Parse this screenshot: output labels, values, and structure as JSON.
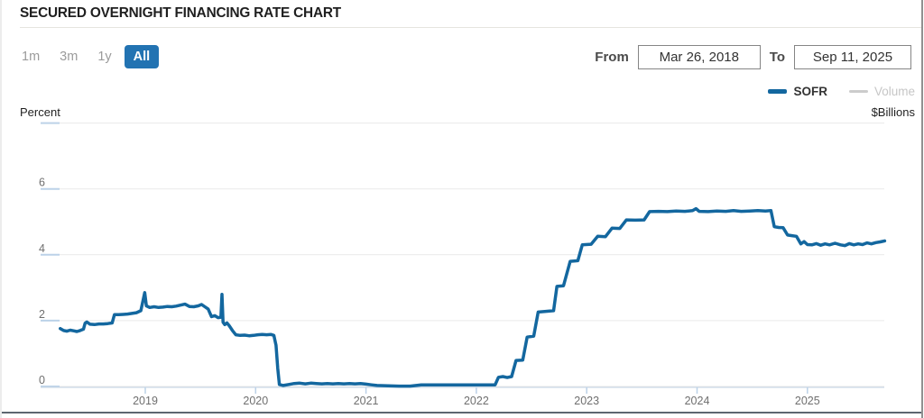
{
  "header": {
    "title": "SECURED OVERNIGHT FINANCING RATE CHART"
  },
  "controls": {
    "ranges": [
      {
        "label": "1m",
        "active": false
      },
      {
        "label": "3m",
        "active": false
      },
      {
        "label": "1y",
        "active": false
      },
      {
        "label": "All",
        "active": true
      }
    ],
    "from_label": "From",
    "from_value": "Mar 26, 2018",
    "to_label": "To",
    "to_value": "Sep 11, 2025"
  },
  "legend": {
    "sofr": {
      "label": "SOFR",
      "color": "#13679f",
      "enabled": true
    },
    "volume": {
      "label": "Volume",
      "color": "#cccccc",
      "enabled": false
    }
  },
  "axes": {
    "left_unit": "Percent",
    "right_unit": "$Billions"
  },
  "colors": {
    "accent_blue": "#2273b2",
    "line_blue": "#13679f",
    "grid": "#e9e9e9",
    "tick_blue": "#bcd2e8",
    "axis_baseline": "#ccd9e8",
    "axis_text": "#6f6f6f",
    "muted_text": "#9b9b9b",
    "legend_disabled": "#c6c6c6",
    "bottom_rule": "#5d6670"
  },
  "chart_data": {
    "type": "line",
    "title": "Secured Overnight Financing Rate",
    "left_axis_label": "Percent",
    "right_axis_label": "$Billions",
    "x_range": [
      2018.23,
      2025.7
    ],
    "ylim": [
      0,
      8
    ],
    "yticks": [
      0,
      2,
      4,
      6
    ],
    "grid_values": [
      0,
      2,
      4,
      6,
      8
    ],
    "x_ticks": [
      {
        "value": 2019,
        "label": "2019"
      },
      {
        "value": 2020,
        "label": "2020"
      },
      {
        "value": 2021,
        "label": "2021"
      },
      {
        "value": 2022,
        "label": "2022"
      },
      {
        "value": 2023,
        "label": "2023"
      },
      {
        "value": 2024,
        "label": "2024"
      },
      {
        "value": 2025,
        "label": "2025"
      }
    ],
    "legend_position": "top-right",
    "grid": true,
    "series": [
      {
        "name": "SOFR",
        "unit": "percent",
        "color": "#13679f",
        "visible": true,
        "points": [
          [
            2018.23,
            1.76
          ],
          [
            2018.26,
            1.7
          ],
          [
            2018.29,
            1.68
          ],
          [
            2018.32,
            1.71
          ],
          [
            2018.35,
            1.69
          ],
          [
            2018.38,
            1.67
          ],
          [
            2018.41,
            1.7
          ],
          [
            2018.44,
            1.74
          ],
          [
            2018.455,
            1.92
          ],
          [
            2018.47,
            1.96
          ],
          [
            2018.5,
            1.89
          ],
          [
            2018.54,
            1.88
          ],
          [
            2018.58,
            1.9
          ],
          [
            2018.62,
            1.9
          ],
          [
            2018.66,
            1.91
          ],
          [
            2018.7,
            1.93
          ],
          [
            2018.72,
            2.18
          ],
          [
            2018.76,
            2.18
          ],
          [
            2018.8,
            2.19
          ],
          [
            2018.84,
            2.2
          ],
          [
            2018.88,
            2.22
          ],
          [
            2018.92,
            2.24
          ],
          [
            2018.96,
            2.3
          ],
          [
            2018.995,
            2.85
          ],
          [
            2019.01,
            2.45
          ],
          [
            2019.04,
            2.4
          ],
          [
            2019.08,
            2.42
          ],
          [
            2019.12,
            2.4
          ],
          [
            2019.16,
            2.41
          ],
          [
            2019.2,
            2.43
          ],
          [
            2019.24,
            2.42
          ],
          [
            2019.28,
            2.44
          ],
          [
            2019.32,
            2.47
          ],
          [
            2019.36,
            2.5
          ],
          [
            2019.4,
            2.43
          ],
          [
            2019.44,
            2.42
          ],
          [
            2019.48,
            2.45
          ],
          [
            2019.51,
            2.49
          ],
          [
            2019.54,
            2.42
          ],
          [
            2019.57,
            2.35
          ],
          [
            2019.6,
            2.12
          ],
          [
            2019.63,
            2.15
          ],
          [
            2019.66,
            2.09
          ],
          [
            2019.685,
            2.1
          ],
          [
            2019.695,
            2.8
          ],
          [
            2019.705,
            1.95
          ],
          [
            2019.72,
            1.88
          ],
          [
            2019.74,
            1.93
          ],
          [
            2019.76,
            1.85
          ],
          [
            2019.79,
            1.7
          ],
          [
            2019.82,
            1.57
          ],
          [
            2019.86,
            1.55
          ],
          [
            2019.9,
            1.56
          ],
          [
            2019.94,
            1.54
          ],
          [
            2019.98,
            1.55
          ],
          [
            2020.02,
            1.57
          ],
          [
            2020.06,
            1.58
          ],
          [
            2020.1,
            1.57
          ],
          [
            2020.14,
            1.58
          ],
          [
            2020.165,
            1.55
          ],
          [
            2020.185,
            1.25
          ],
          [
            2020.2,
            0.55
          ],
          [
            2020.215,
            0.06
          ],
          [
            2020.25,
            0.03
          ],
          [
            2020.3,
            0.06
          ],
          [
            2020.35,
            0.09
          ],
          [
            2020.4,
            0.1
          ],
          [
            2020.45,
            0.08
          ],
          [
            2020.5,
            0.1
          ],
          [
            2020.55,
            0.09
          ],
          [
            2020.6,
            0.08
          ],
          [
            2020.65,
            0.09
          ],
          [
            2020.7,
            0.08
          ],
          [
            2020.75,
            0.09
          ],
          [
            2020.8,
            0.08
          ],
          [
            2020.85,
            0.09
          ],
          [
            2020.9,
            0.08
          ],
          [
            2020.95,
            0.09
          ],
          [
            2021.0,
            0.07
          ],
          [
            2021.05,
            0.05
          ],
          [
            2021.1,
            0.03
          ],
          [
            2021.2,
            0.02
          ],
          [
            2021.3,
            0.01
          ],
          [
            2021.4,
            0.01
          ],
          [
            2021.5,
            0.05
          ],
          [
            2021.6,
            0.05
          ],
          [
            2021.7,
            0.05
          ],
          [
            2021.8,
            0.05
          ],
          [
            2021.9,
            0.05
          ],
          [
            2022.0,
            0.05
          ],
          [
            2022.1,
            0.05
          ],
          [
            2022.17,
            0.05
          ],
          [
            2022.2,
            0.28
          ],
          [
            2022.24,
            0.3
          ],
          [
            2022.28,
            0.27
          ],
          [
            2022.32,
            0.3
          ],
          [
            2022.36,
            0.79
          ],
          [
            2022.42,
            0.8
          ],
          [
            2022.46,
            1.5
          ],
          [
            2022.52,
            1.53
          ],
          [
            2022.56,
            2.26
          ],
          [
            2022.62,
            2.28
          ],
          [
            2022.7,
            2.3
          ],
          [
            2022.73,
            3.04
          ],
          [
            2022.79,
            3.06
          ],
          [
            2022.85,
            3.8
          ],
          [
            2022.92,
            3.82
          ],
          [
            2022.96,
            4.3
          ],
          [
            2023.04,
            4.32
          ],
          [
            2023.1,
            4.56
          ],
          [
            2023.17,
            4.55
          ],
          [
            2023.23,
            4.81
          ],
          [
            2023.3,
            4.8
          ],
          [
            2023.36,
            5.06
          ],
          [
            2023.44,
            5.05
          ],
          [
            2023.52,
            5.06
          ],
          [
            2023.57,
            5.31
          ],
          [
            2023.65,
            5.32
          ],
          [
            2023.73,
            5.31
          ],
          [
            2023.81,
            5.33
          ],
          [
            2023.89,
            5.32
          ],
          [
            2023.96,
            5.34
          ],
          [
            2023.99,
            5.4
          ],
          [
            2024.02,
            5.32
          ],
          [
            2024.1,
            5.31
          ],
          [
            2024.18,
            5.33
          ],
          [
            2024.26,
            5.32
          ],
          [
            2024.33,
            5.34
          ],
          [
            2024.4,
            5.32
          ],
          [
            2024.48,
            5.33
          ],
          [
            2024.55,
            5.34
          ],
          [
            2024.62,
            5.33
          ],
          [
            2024.67,
            5.34
          ],
          [
            2024.7,
            4.85
          ],
          [
            2024.74,
            4.83
          ],
          [
            2024.78,
            4.82
          ],
          [
            2024.82,
            4.6
          ],
          [
            2024.86,
            4.58
          ],
          [
            2024.9,
            4.56
          ],
          [
            2024.94,
            4.33
          ],
          [
            2024.97,
            4.4
          ],
          [
            2025.0,
            4.31
          ],
          [
            2025.04,
            4.3
          ],
          [
            2025.08,
            4.34
          ],
          [
            2025.12,
            4.29
          ],
          [
            2025.16,
            4.33
          ],
          [
            2025.2,
            4.3
          ],
          [
            2025.25,
            4.35
          ],
          [
            2025.3,
            4.3
          ],
          [
            2025.34,
            4.28
          ],
          [
            2025.38,
            4.34
          ],
          [
            2025.42,
            4.3
          ],
          [
            2025.46,
            4.33
          ],
          [
            2025.5,
            4.31
          ],
          [
            2025.54,
            4.36
          ],
          [
            2025.58,
            4.33
          ],
          [
            2025.62,
            4.37
          ],
          [
            2025.66,
            4.39
          ],
          [
            2025.7,
            4.42
          ]
        ]
      },
      {
        "name": "Volume",
        "unit": "$billions",
        "color": "#cccccc",
        "visible": false,
        "points": []
      }
    ]
  }
}
